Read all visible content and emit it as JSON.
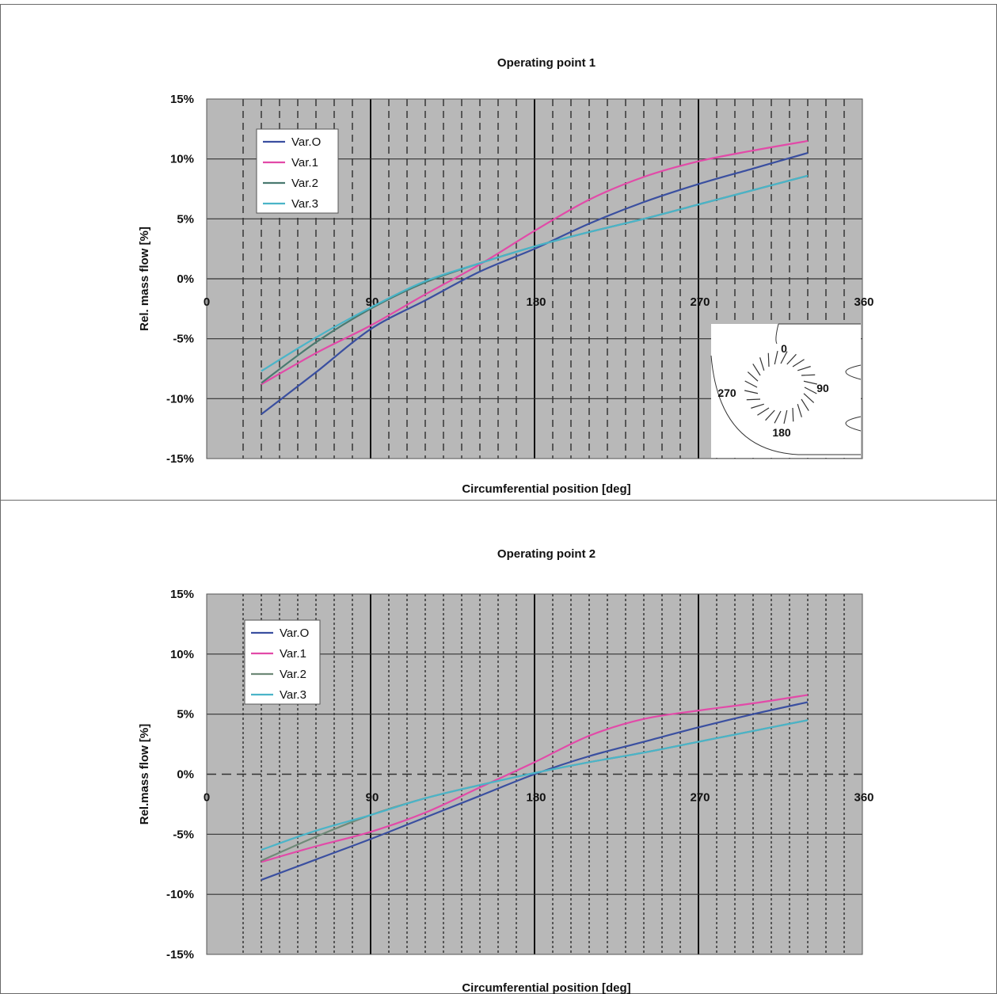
{
  "chart_data": [
    {
      "type": "line",
      "title": "Operating point 1",
      "xlabel": "Circumferential position [deg]",
      "ylabel": "Rel. mass flow [%]",
      "xlim": [
        0,
        360
      ],
      "ylim": [
        -15,
        15
      ],
      "y_ticks": [
        "15%",
        "10%",
        "5%",
        "0%",
        "-5%",
        "-10%",
        "-15%"
      ],
      "x_ticks": [
        "0",
        "90",
        "180",
        "270",
        "360"
      ],
      "grid": true,
      "legend_position": "top-left",
      "inset": {
        "labels": [
          "0",
          "90",
          "180",
          "270"
        ]
      },
      "series": [
        {
          "name": "Var.O",
          "color": "#3a4fa0",
          "x": [
            30,
            60,
            90,
            120,
            150,
            180,
            210,
            240,
            270,
            300,
            330
          ],
          "y": [
            -11.3,
            -7.8,
            -4.2,
            -1.8,
            0.6,
            2.5,
            4.6,
            6.4,
            7.9,
            9.2,
            10.5
          ]
        },
        {
          "name": "Var.1",
          "color": "#e24aa8",
          "x": [
            30,
            60,
            90,
            120,
            150,
            180,
            210,
            240,
            270,
            300,
            330
          ],
          "y": [
            -8.8,
            -6.2,
            -3.9,
            -1.3,
            1.2,
            4.0,
            6.6,
            8.5,
            9.8,
            10.7,
            11.5
          ]
        },
        {
          "name": "Var.2",
          "color": "#4a7a70",
          "x": [
            30,
            60,
            90,
            120,
            150,
            180,
            210,
            240,
            270,
            300,
            330
          ],
          "y": [
            -8.7,
            -5.3,
            -2.5,
            -0.3,
            1.3,
            2.7,
            3.9,
            5.0,
            6.2,
            7.4,
            8.6
          ]
        },
        {
          "name": "Var.3",
          "color": "#4ab4c8",
          "x": [
            30,
            60,
            90,
            120,
            150,
            180,
            210,
            240,
            270,
            300,
            330
          ],
          "y": [
            -7.7,
            -4.9,
            -2.4,
            -0.2,
            1.3,
            2.7,
            3.9,
            5.0,
            6.2,
            7.4,
            8.6
          ]
        }
      ]
    },
    {
      "type": "line",
      "title": "Operating point 2",
      "xlabel": "Circumferential position [deg]",
      "ylabel": "Rel.mass flow [%]",
      "xlim": [
        0,
        360
      ],
      "ylim": [
        -15,
        15
      ],
      "y_ticks": [
        "15%",
        "10%",
        "5%",
        "0%",
        "-5%",
        "-10%",
        "-15%"
      ],
      "x_ticks": [
        "0",
        "90",
        "180",
        "270",
        "360"
      ],
      "grid": true,
      "legend_position": "top-left",
      "series": [
        {
          "name": "Var.O",
          "color": "#3a4fa0",
          "x": [
            30,
            60,
            90,
            120,
            150,
            180,
            210,
            240,
            270,
            300,
            330
          ],
          "y": [
            -8.8,
            -7.1,
            -5.4,
            -3.6,
            -1.8,
            0.0,
            1.5,
            2.7,
            3.9,
            5.0,
            6.0
          ]
        },
        {
          "name": "Var.1",
          "color": "#e24aa8",
          "x": [
            30,
            60,
            90,
            120,
            150,
            180,
            210,
            240,
            270,
            300,
            330
          ],
          "y": [
            -7.3,
            -6.0,
            -4.8,
            -3.2,
            -1.1,
            1.0,
            3.2,
            4.6,
            5.3,
            5.9,
            6.6
          ]
        },
        {
          "name": "Var.2",
          "color": "#6f8a78",
          "x": [
            30,
            60,
            90,
            120,
            150,
            180,
            210,
            240,
            270,
            300,
            330
          ],
          "y": [
            -7.2,
            -5.2,
            -3.4,
            -2.0,
            -0.9,
            0.1,
            1.0,
            1.8,
            2.7,
            3.6,
            4.5
          ]
        },
        {
          "name": "Var.3",
          "color": "#4ab4c8",
          "x": [
            30,
            60,
            90,
            120,
            150,
            180,
            210,
            240,
            270,
            300,
            330
          ],
          "y": [
            -6.3,
            -4.7,
            -3.4,
            -2.0,
            -0.9,
            0.1,
            1.0,
            1.8,
            2.7,
            3.6,
            4.5
          ]
        }
      ]
    }
  ]
}
